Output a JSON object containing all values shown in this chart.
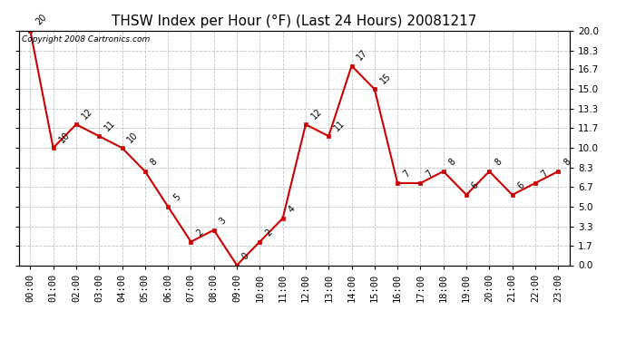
{
  "title": "THSW Index per Hour (°F) (Last 24 Hours) 20081217",
  "copyright": "Copyright 2008 Cartronics.com",
  "hours": [
    "00:00",
    "01:00",
    "02:00",
    "03:00",
    "04:00",
    "05:00",
    "06:00",
    "07:00",
    "08:00",
    "09:00",
    "10:00",
    "11:00",
    "12:00",
    "13:00",
    "14:00",
    "15:00",
    "16:00",
    "17:00",
    "18:00",
    "19:00",
    "20:00",
    "21:00",
    "22:00",
    "23:00"
  ],
  "values": [
    20,
    10,
    12,
    11,
    10,
    8,
    5,
    2,
    3,
    0,
    2,
    4,
    12,
    11,
    17,
    15,
    7,
    7,
    8,
    6,
    8,
    6,
    7,
    8
  ],
  "line_color": "#cc0000",
  "marker_color": "#cc0000",
  "bg_color": "#ffffff",
  "plot_bg_color": "#ffffff",
  "grid_color": "#bbbbbb",
  "ylim": [
    0.0,
    20.0
  ],
  "yticks": [
    0.0,
    1.7,
    3.3,
    5.0,
    6.7,
    8.3,
    10.0,
    11.7,
    13.3,
    15.0,
    16.7,
    18.3,
    20.0
  ],
  "title_fontsize": 11,
  "label_fontsize": 7.5,
  "copyright_fontsize": 6.5,
  "annot_fontsize": 7
}
